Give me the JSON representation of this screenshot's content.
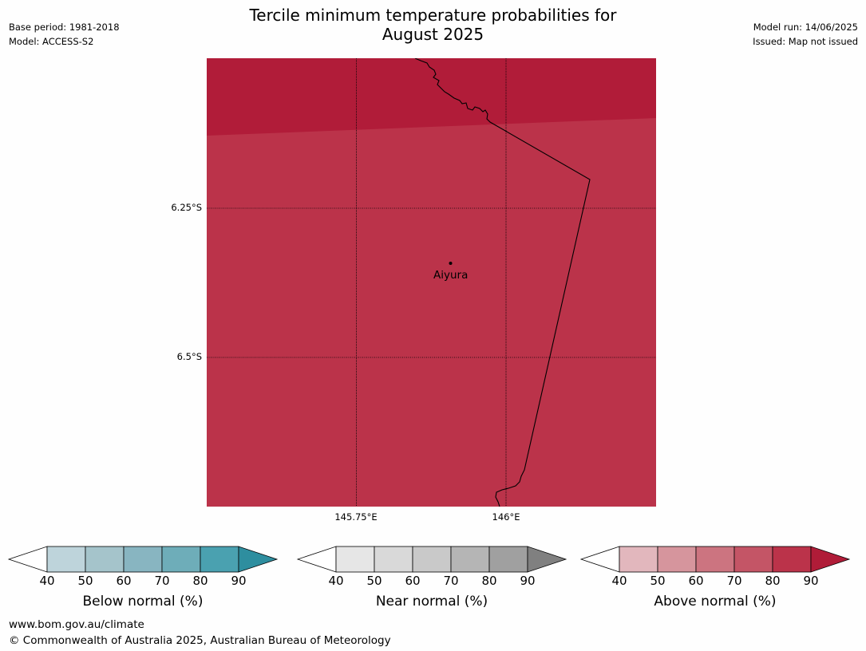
{
  "title_line1": "Tercile minimum temperature probabilities for",
  "title_line2": "August 2025",
  "meta_left": {
    "base_period": "Base period: 1981-2018",
    "model": "Model: ACCESS-S2"
  },
  "meta_right": {
    "model_run": "Model run: 14/06/2025",
    "issued": "Issued: Map not issued"
  },
  "map": {
    "place_name": "Aiyura",
    "lat_labels": [
      "6.25°S",
      "6.5°S"
    ],
    "lon_labels": [
      "145.75°E",
      "146°E"
    ],
    "colors": {
      "top_band": "#b11c39",
      "main": "#bb334a"
    }
  },
  "colorbars": [
    {
      "label": "Below normal (%)",
      "ticks": [
        "40",
        "50",
        "60",
        "70",
        "80",
        "90"
      ],
      "colors": [
        "#ffffff",
        "#bed4db",
        "#a5c4cb",
        "#88b5c1",
        "#6eadb9",
        "#4aa1b0",
        "#2e8e9f"
      ]
    },
    {
      "label": "Near normal (%)",
      "ticks": [
        "40",
        "50",
        "60",
        "70",
        "80",
        "90"
      ],
      "colors": [
        "#ffffff",
        "#e6e6e6",
        "#d9d9d9",
        "#c9c9c9",
        "#b5b5b5",
        "#a0a0a0",
        "#808080"
      ]
    },
    {
      "label": "Above normal (%)",
      "ticks": [
        "40",
        "50",
        "60",
        "70",
        "80",
        "90"
      ],
      "colors": [
        "#ffffff",
        "#e2b7bd",
        "#d6959d",
        "#cc7480",
        "#c45566",
        "#bb334a",
        "#b01c38"
      ]
    }
  ],
  "footer": {
    "url": "www.bom.gov.au/climate",
    "copyright": "© Commonwealth of Australia 2025, Australian Bureau of Meteorology"
  }
}
